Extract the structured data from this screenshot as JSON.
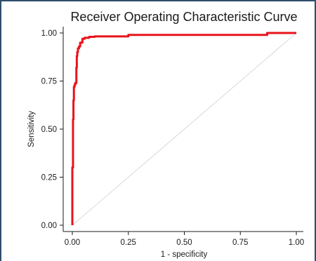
{
  "chart_data": {
    "type": "line",
    "title": "Receiver Operating Characteristic Curve",
    "xlabel": "1 - specificity",
    "ylabel": "Sensitivity",
    "xlim": [
      0,
      1
    ],
    "ylim": [
      0,
      1
    ],
    "xticks": [
      "0.00",
      "0.25",
      "0.50",
      "0.75",
      "1.00"
    ],
    "yticks": [
      "0.00",
      "0.25",
      "0.50",
      "0.75",
      "1.00"
    ],
    "grid": false,
    "colors": {
      "curve": "#e8141b",
      "reference": "#d9d9d9"
    },
    "series": [
      {
        "x": [
          0,
          0,
          0.003,
          0.003,
          0.005,
          0.005,
          0.007,
          0.007,
          0.01,
          0.01,
          0.013,
          0.013,
          0.018,
          0.018,
          0.02,
          0.02,
          0.022,
          0.022,
          0.025,
          0.025,
          0.03,
          0.03,
          0.035,
          0.035,
          0.045,
          0.045,
          0.055,
          0.055,
          0.075,
          0.075,
          0.1,
          0.1,
          0.25,
          0.25,
          0.87,
          0.87,
          1.0
        ],
        "y": [
          0,
          0.3,
          0.3,
          0.55,
          0.55,
          0.65,
          0.65,
          0.72,
          0.72,
          0.73,
          0.73,
          0.74,
          0.74,
          0.82,
          0.82,
          0.88,
          0.88,
          0.9,
          0.9,
          0.92,
          0.92,
          0.93,
          0.93,
          0.95,
          0.95,
          0.97,
          0.97,
          0.975,
          0.975,
          0.98,
          0.98,
          0.982,
          0.982,
          0.99,
          0.99,
          1.0,
          1.0
        ]
      },
      {
        "x": [
          0,
          1
        ],
        "y": [
          0,
          1
        ]
      }
    ]
  }
}
